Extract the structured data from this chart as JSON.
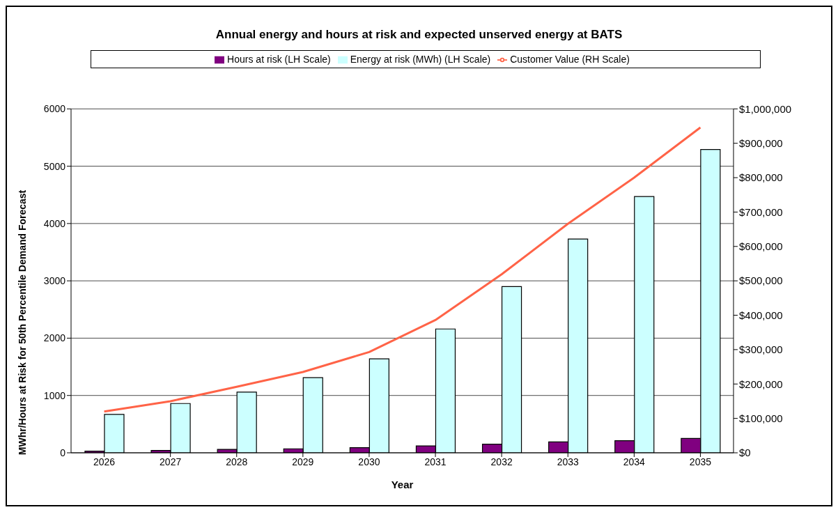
{
  "chart_data": {
    "type": "bar",
    "title": "Annual energy and hours at risk and expected unserved energy at BATS",
    "xlabel": "Year",
    "ylabel": "MWhr/Hours at Risk  for 50th Percentile Demand Forecast",
    "categories": [
      "2026",
      "2027",
      "2028",
      "2029",
      "2030",
      "2031",
      "2032",
      "2033",
      "2034",
      "2035"
    ],
    "series": [
      {
        "name": "Hours at risk (LH Scale)",
        "color": "#800080",
        "values": [
          30,
          40,
          60,
          70,
          90,
          120,
          150,
          190,
          210,
          250
        ]
      },
      {
        "name": "Energy at risk (MWh) (LH Scale)",
        "color": "#ccffff",
        "values": [
          670,
          860,
          1060,
          1310,
          1640,
          2160,
          2900,
          3730,
          4470,
          5290
        ]
      },
      {
        "name": "Customer Value (RH Scale)",
        "type": "line",
        "axis": "y2",
        "color": "#ff6347",
        "values": [
          120000,
          150000,
          192000,
          235000,
          293000,
          386000,
          519000,
          666000,
          800000,
          946000
        ]
      }
    ],
    "ylim": [
      0,
      6000
    ],
    "yticks": [
      0,
      1000,
      2000,
      3000,
      4000,
      5000,
      6000
    ],
    "y2lim": [
      0,
      1000000
    ],
    "y2ticks": [
      {
        "value": 0,
        "label": "$0"
      },
      {
        "value": 100000,
        "label": "$100,000"
      },
      {
        "value": 200000,
        "label": "$200,000"
      },
      {
        "value": 300000,
        "label": "$300,000"
      },
      {
        "value": 400000,
        "label": "$400,000"
      },
      {
        "value": 500000,
        "label": "$500,000"
      },
      {
        "value": 600000,
        "label": "$600,000"
      },
      {
        "value": 700000,
        "label": "$700,000"
      },
      {
        "value": 800000,
        "label": "$800,000"
      },
      {
        "value": 900000,
        "label": "$900,000"
      },
      {
        "value": 1000000,
        "label": "$1,000,000"
      }
    ],
    "grid": "y",
    "legend": "top",
    "marker": "none"
  }
}
